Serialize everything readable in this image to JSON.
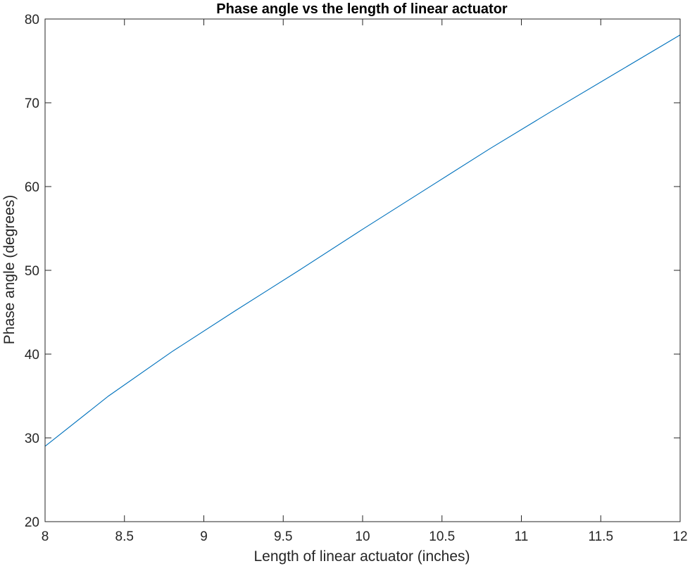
{
  "chart_data": {
    "type": "line",
    "title": "Phase angle vs the length of linear actuator",
    "xlabel": "Length of linear actuator (inches)",
    "ylabel": "Phase angle (degrees)",
    "xlim": [
      8,
      12
    ],
    "ylim": [
      20,
      80
    ],
    "xticks": [
      8,
      8.5,
      9,
      9.5,
      10,
      10.5,
      11,
      11.5,
      12
    ],
    "xtick_labels": [
      "8",
      "8.5",
      "9",
      "9.5",
      "10",
      "10.5",
      "11",
      "11.5",
      "12"
    ],
    "yticks": [
      20,
      30,
      40,
      50,
      60,
      70,
      80
    ],
    "ytick_labels": [
      "20",
      "30",
      "40",
      "50",
      "60",
      "70",
      "80"
    ],
    "grid": false,
    "series": [
      {
        "color": "#0072BD",
        "x": [
          8.0,
          8.4,
          8.8,
          9.2,
          9.6,
          10.0,
          10.4,
          10.8,
          11.2,
          11.6,
          12.0
        ],
        "y": [
          29.0,
          35.0,
          40.3,
          45.2,
          50.0,
          54.9,
          59.7,
          64.5,
          69.1,
          73.6,
          78.1
        ]
      }
    ]
  }
}
